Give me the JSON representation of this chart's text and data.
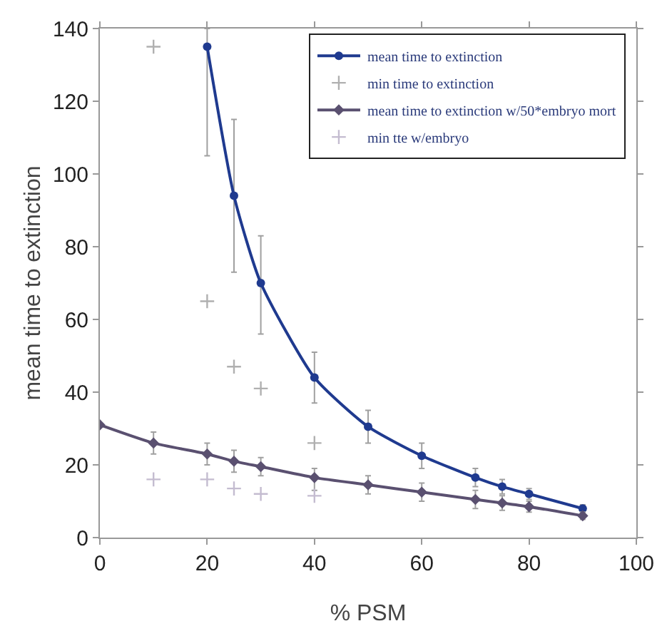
{
  "chart_data": {
    "type": "line",
    "xlabel": "% PSM",
    "ylabel": "mean time to extinction",
    "xlim": [
      0,
      100
    ],
    "xticks": [
      0,
      20,
      40,
      60,
      80,
      100
    ],
    "ylim": [
      0,
      140
    ],
    "yticks": [
      0,
      20,
      40,
      60,
      80,
      100,
      120,
      140
    ],
    "grid": false,
    "legend": "top right",
    "line_style": "solid",
    "series": [
      {
        "name": "mean time to extinction",
        "marker": "circle",
        "color": "#1f3a8f",
        "x": [
          20,
          25,
          30,
          40,
          50,
          60,
          70,
          75,
          80,
          90
        ],
        "values": [
          135,
          94,
          70,
          44,
          30.5,
          22.5,
          16.5,
          14,
          12,
          8
        ],
        "errors": [
          [
            105,
            140
          ],
          [
            73,
            115
          ],
          [
            56,
            83
          ],
          [
            37,
            51
          ],
          [
            26,
            35
          ],
          [
            19,
            26
          ],
          [
            14,
            19
          ],
          [
            12,
            16
          ],
          [
            10.5,
            13.5
          ],
          [
            7,
            9
          ]
        ]
      },
      {
        "name": "min time to extinction",
        "type": "scatter",
        "marker": "cross",
        "color": "#b0b0b0",
        "x": [
          10,
          20,
          25,
          30,
          40
        ],
        "values": [
          135,
          65,
          47,
          41,
          26
        ]
      },
      {
        "name": "mean time to extinction w/50*embryo mort",
        "marker": "diamond",
        "color": "#5a5070",
        "x": [
          0,
          10,
          20,
          25,
          30,
          40,
          50,
          60,
          70,
          75,
          80,
          90
        ],
        "values": [
          31,
          26,
          23,
          21,
          19.5,
          16.5,
          14.5,
          12.5,
          10.5,
          9.5,
          8.5,
          6
        ],
        "errors": [
          null,
          [
            23,
            29
          ],
          [
            20,
            26
          ],
          [
            18,
            24
          ],
          [
            17,
            22
          ],
          [
            13,
            19
          ],
          [
            12,
            17
          ],
          [
            10,
            15
          ],
          [
            8,
            13
          ],
          [
            7.5,
            11.5
          ],
          [
            7,
            10
          ],
          [
            5,
            7
          ]
        ]
      },
      {
        "name": "min tte w/embryo",
        "type": "scatter",
        "marker": "cross",
        "color": "#c4bcd0",
        "x": [
          10,
          20,
          25,
          30,
          40
        ],
        "values": [
          16,
          16,
          13.5,
          12,
          11.5
        ]
      }
    ]
  }
}
